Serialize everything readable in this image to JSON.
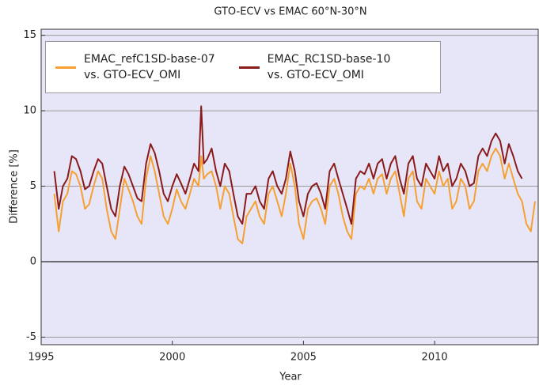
{
  "chart_data": {
    "type": "line",
    "title": "GTO-ECV vs EMAC 60°N-30°N",
    "xlabel": "Year",
    "ylabel": "Difference [%]",
    "x": [
      1995.5,
      1995.67,
      1995.83,
      1996.0,
      1996.17,
      1996.33,
      1996.5,
      1996.67,
      1996.83,
      1997.0,
      1997.17,
      1997.33,
      1997.5,
      1997.67,
      1997.83,
      1998.0,
      1998.17,
      1998.33,
      1998.5,
      1998.67,
      1998.83,
      1999.0,
      1999.17,
      1999.33,
      1999.5,
      1999.67,
      1999.83,
      2000.0,
      2000.17,
      2000.33,
      2000.5,
      2000.67,
      2000.83,
      2001.0,
      2001.1,
      2001.2,
      2001.33,
      2001.5,
      2001.67,
      2001.83,
      2002.0,
      2002.17,
      2002.33,
      2002.5,
      2002.67,
      2002.83,
      2003.0,
      2003.17,
      2003.33,
      2003.5,
      2003.67,
      2003.83,
      2004.0,
      2004.17,
      2004.33,
      2004.5,
      2004.67,
      2004.83,
      2005.0,
      2005.17,
      2005.33,
      2005.5,
      2005.67,
      2005.83,
      2006.0,
      2006.17,
      2006.33,
      2006.5,
      2006.67,
      2006.83,
      2007.0,
      2007.17,
      2007.33,
      2007.5,
      2007.67,
      2007.83,
      2008.0,
      2008.17,
      2008.33,
      2008.5,
      2008.67,
      2008.83,
      2009.0,
      2009.17,
      2009.33,
      2009.5,
      2009.67,
      2009.83,
      2010.0,
      2010.17,
      2010.33,
      2010.5,
      2010.67,
      2010.83,
      2011.0,
      2011.17,
      2011.33,
      2011.5,
      2011.67,
      2011.83,
      2012.0,
      2012.17,
      2012.33,
      2012.5,
      2012.67,
      2012.83,
      2013.0,
      2013.17,
      2013.33,
      2013.5,
      2013.67,
      2013.83
    ],
    "series": [
      {
        "name": "EMAC_refC1SD-base-07\nvs. GTO-ECV_OMI",
        "color": "#f5a030",
        "values": [
          4.5,
          2.0,
          4.0,
          4.5,
          6.0,
          5.8,
          5.0,
          3.5,
          3.8,
          5.0,
          6.0,
          5.5,
          3.5,
          2.0,
          1.5,
          3.5,
          5.5,
          4.8,
          4.0,
          3.0,
          2.5,
          5.5,
          7.0,
          6.0,
          4.5,
          3.0,
          2.5,
          3.5,
          4.8,
          4.0,
          3.5,
          4.5,
          5.5,
          5.0,
          7.0,
          5.5,
          5.8,
          6.0,
          5.0,
          3.5,
          5.0,
          4.5,
          3.0,
          1.5,
          1.2,
          3.0,
          3.5,
          4.0,
          3.0,
          2.5,
          4.5,
          5.0,
          4.0,
          3.0,
          4.5,
          6.5,
          5.0,
          2.5,
          1.5,
          3.5,
          4.0,
          4.2,
          3.5,
          2.5,
          5.0,
          5.5,
          4.5,
          3.0,
          2.0,
          1.5,
          4.5,
          5.0,
          4.8,
          5.5,
          4.5,
          5.5,
          5.8,
          4.5,
          5.5,
          6.0,
          4.5,
          3.0,
          5.5,
          6.0,
          4.0,
          3.5,
          5.5,
          5.0,
          4.5,
          6.0,
          5.0,
          5.5,
          3.5,
          4.0,
          5.5,
          5.0,
          3.5,
          4.0,
          6.0,
          6.5,
          6.0,
          7.0,
          7.5,
          7.0,
          5.5,
          6.5,
          5.5,
          4.5,
          4.0,
          2.5,
          2.0,
          4.0
        ]
      },
      {
        "name": "EMAC_RC1SD-base-10\nvs. GTO-ECV_OMI",
        "color": "#8b1a1a",
        "values": [
          6.0,
          3.5,
          5.0,
          5.5,
          7.0,
          6.8,
          6.0,
          4.8,
          5.0,
          6.0,
          6.8,
          6.5,
          5.0,
          3.5,
          3.0,
          5.0,
          6.3,
          5.8,
          5.0,
          4.2,
          4.0,
          6.5,
          7.8,
          7.2,
          6.0,
          4.5,
          4.0,
          5.0,
          5.8,
          5.2,
          4.5,
          5.5,
          6.5,
          6.0,
          10.3,
          6.5,
          6.8,
          7.5,
          6.0,
          5.0,
          6.5,
          6.0,
          4.5,
          3.0,
          2.5,
          4.5,
          4.5,
          5.0,
          4.0,
          3.5,
          5.5,
          6.0,
          5.0,
          4.5,
          5.5,
          7.3,
          6.0,
          4.0,
          3.0,
          4.5,
          5.0,
          5.2,
          4.5,
          3.5,
          6.0,
          6.5,
          5.5,
          4.5,
          3.5,
          2.5,
          5.5,
          6.0,
          5.8,
          6.5,
          5.5,
          6.5,
          6.8,
          5.5,
          6.5,
          7.0,
          5.5,
          4.5,
          6.5,
          7.0,
          5.5,
          5.0,
          6.5,
          6.0,
          5.5,
          7.0,
          6.0,
          6.5,
          5.0,
          5.5,
          6.5,
          6.0,
          5.0,
          5.2,
          7.0,
          7.5,
          7.0,
          8.0,
          8.5,
          8.0,
          6.5,
          7.8,
          7.0,
          6.0,
          5.5,
          null,
          null,
          null
        ]
      }
    ],
    "xlim": [
      1995,
      2013.95
    ],
    "xticks": [
      1995,
      2000,
      2005,
      2010
    ],
    "ylim": [
      -5.5,
      15.4
    ],
    "yticks": [
      -5,
      0,
      5,
      10,
      15
    ],
    "grid": true,
    "legend": "upper left"
  }
}
